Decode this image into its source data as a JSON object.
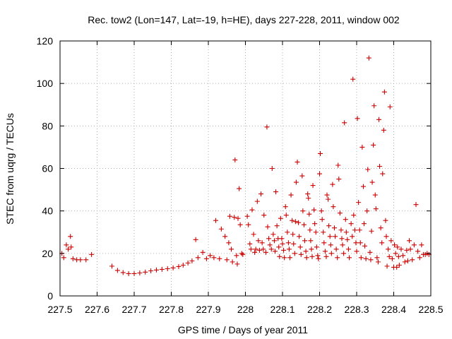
{
  "chart_data": {
    "type": "scatter",
    "title": "Rec. tow2 (Lon=147, Lat=-19, h=HE), days 227-228, 2011, window 002",
    "xlabel": "GPS time / Days of year 2011",
    "ylabel": "STEC from uqrg / TECUs",
    "xlim": [
      227.5,
      228.5
    ],
    "ylim": [
      0,
      120
    ],
    "grid": true,
    "marker": "+",
    "marker_color": "#cc0000",
    "x_ticks": [
      227.5,
      227.6,
      227.7,
      227.8,
      227.9,
      228.0,
      228.1,
      228.2,
      228.3,
      228.4,
      228.5
    ],
    "x_tick_labels": [
      "227.5",
      "227.6",
      "227.7",
      "227.8",
      "227.9",
      "228",
      "228.1",
      "228.2",
      "228.3",
      "228.4",
      "228.5"
    ],
    "y_ticks": [
      0,
      20,
      40,
      60,
      80,
      100,
      120
    ],
    "y_tick_labels": [
      "0",
      "20",
      "40",
      "60",
      "80",
      "100",
      "120"
    ],
    "points": [
      [
        227.505,
        20
      ],
      [
        227.51,
        18
      ],
      [
        227.517,
        24
      ],
      [
        227.522,
        22
      ],
      [
        227.528,
        28
      ],
      [
        227.53,
        23
      ],
      [
        227.535,
        17.5
      ],
      [
        227.545,
        17
      ],
      [
        227.555,
        17
      ],
      [
        227.57,
        17
      ],
      [
        227.585,
        19.5
      ],
      [
        227.64,
        14
      ],
      [
        227.655,
        12
      ],
      [
        227.67,
        11
      ],
      [
        227.685,
        10.5
      ],
      [
        227.7,
        10.5
      ],
      [
        227.715,
        10.8
      ],
      [
        227.73,
        11.2
      ],
      [
        227.745,
        11.8
      ],
      [
        227.76,
        12.2
      ],
      [
        227.775,
        12.5
      ],
      [
        227.79,
        12.8
      ],
      [
        227.805,
        13.2
      ],
      [
        227.82,
        13.8
      ],
      [
        227.832,
        14.5
      ],
      [
        227.845,
        15.5
      ],
      [
        227.856,
        16.5
      ],
      [
        227.866,
        26.5
      ],
      [
        227.872,
        18
      ],
      [
        227.885,
        20.5
      ],
      [
        227.895,
        17.5
      ],
      [
        227.905,
        19
      ],
      [
        227.915,
        18
      ],
      [
        227.92,
        35.5
      ],
      [
        227.93,
        17.5
      ],
      [
        227.935,
        31.5
      ],
      [
        227.945,
        28
      ],
      [
        227.95,
        17
      ],
      [
        227.955,
        25
      ],
      [
        227.958,
        37.5
      ],
      [
        227.962,
        22
      ],
      [
        227.965,
        16
      ],
      [
        227.97,
        37
      ],
      [
        227.972,
        64
      ],
      [
        227.976,
        19
      ],
      [
        227.98,
        36.5
      ],
      [
        227.983,
        50.5
      ],
      [
        227.986,
        33.5
      ],
      [
        227.99,
        20
      ],
      [
        227.993,
        19.5
      ],
      [
        227.978,
        15
      ],
      [
        228.005,
        37.5
      ],
      [
        228.008,
        33.5
      ],
      [
        228.012,
        24.5
      ],
      [
        228.015,
        22
      ],
      [
        228.018,
        40.5
      ],
      [
        228.022,
        29
      ],
      [
        228.025,
        20.5
      ],
      [
        228.028,
        22
      ],
      [
        228.032,
        44.5
      ],
      [
        228.035,
        26
      ],
      [
        228.038,
        21.5
      ],
      [
        228.042,
        48
      ],
      [
        228.045,
        25
      ],
      [
        228.048,
        22
      ],
      [
        228.05,
        38
      ],
      [
        228.055,
        20.5
      ],
      [
        228.058,
        79.5
      ],
      [
        228.06,
        32.5
      ],
      [
        228.063,
        27
      ],
      [
        228.066,
        24
      ],
      [
        228.07,
        22
      ],
      [
        228.072,
        60
      ],
      [
        228.075,
        29
      ],
      [
        228.078,
        26
      ],
      [
        228.08,
        21
      ],
      [
        228.082,
        49
      ],
      [
        228.085,
        33
      ],
      [
        228.088,
        27
      ],
      [
        228.09,
        23
      ],
      [
        228.092,
        18.5
      ],
      [
        228.095,
        36.5
      ],
      [
        228.098,
        27
      ],
      [
        228.1,
        24.5
      ],
      [
        228.103,
        21.5
      ],
      [
        228.105,
        18
      ],
      [
        228.108,
        42
      ],
      [
        228.11,
        38
      ],
      [
        228.113,
        30
      ],
      [
        228.116,
        25
      ],
      [
        228.118,
        22
      ],
      [
        228.12,
        18
      ],
      [
        228.123,
        47.5
      ],
      [
        228.126,
        35.5
      ],
      [
        228.128,
        29
      ],
      [
        228.13,
        24.5
      ],
      [
        228.133,
        20
      ],
      [
        228.135,
        35
      ],
      [
        228.137,
        53.5
      ],
      [
        228.14,
        63
      ],
      [
        228.143,
        34.5
      ],
      [
        228.145,
        28
      ],
      [
        228.148,
        23
      ],
      [
        228.15,
        19.5
      ],
      [
        228.153,
        56.5
      ],
      [
        228.155,
        40
      ],
      [
        228.158,
        33.5
      ],
      [
        228.16,
        26
      ],
      [
        228.163,
        21
      ],
      [
        228.165,
        18
      ],
      [
        228.168,
        48
      ],
      [
        228.17,
        46
      ],
      [
        228.172,
        38.5
      ],
      [
        228.174,
        31
      ],
      [
        228.176,
        26
      ],
      [
        228.178,
        22
      ],
      [
        228.18,
        18.5
      ],
      [
        228.182,
        52
      ],
      [
        228.185,
        40.5
      ],
      [
        228.187,
        34
      ],
      [
        228.19,
        30
      ],
      [
        228.192,
        23
      ],
      [
        228.195,
        19
      ],
      [
        228.197,
        17.5
      ],
      [
        228.2,
        57.5
      ],
      [
        228.202,
        67
      ],
      [
        228.205,
        40
      ],
      [
        228.207,
        36
      ],
      [
        228.21,
        30
      ],
      [
        228.212,
        25
      ],
      [
        228.215,
        21
      ],
      [
        228.218,
        18.5
      ],
      [
        228.22,
        47.5
      ],
      [
        228.223,
        45.5
      ],
      [
        228.225,
        33
      ],
      [
        228.228,
        28
      ],
      [
        228.23,
        24
      ],
      [
        228.232,
        20
      ],
      [
        228.235,
        52.5
      ],
      [
        228.237,
        42
      ],
      [
        228.24,
        32
      ],
      [
        228.242,
        28
      ],
      [
        228.245,
        22
      ],
      [
        228.248,
        18
      ],
      [
        228.25,
        61.5
      ],
      [
        228.252,
        55
      ],
      [
        228.255,
        39
      ],
      [
        228.258,
        31
      ],
      [
        228.26,
        27
      ],
      [
        228.262,
        24
      ],
      [
        228.265,
        20
      ],
      [
        228.267,
        81.5
      ],
      [
        228.27,
        36
      ],
      [
        228.272,
        30
      ],
      [
        228.275,
        26.5
      ],
      [
        228.278,
        22
      ],
      [
        228.28,
        18
      ],
      [
        228.285,
        34
      ],
      [
        228.288,
        28
      ],
      [
        228.29,
        102
      ],
      [
        228.292,
        38
      ],
      [
        228.295,
        31
      ],
      [
        228.298,
        25
      ],
      [
        228.3,
        21
      ],
      [
        228.302,
        83.5
      ],
      [
        228.305,
        44
      ],
      [
        228.308,
        31
      ],
      [
        228.31,
        25
      ],
      [
        228.312,
        18
      ],
      [
        228.315,
        70
      ],
      [
        228.318,
        51.5
      ],
      [
        228.32,
        34
      ],
      [
        228.322,
        23.5
      ],
      [
        228.325,
        17.5
      ],
      [
        228.328,
        40
      ],
      [
        228.33,
        59.5
      ],
      [
        228.333,
        112
      ],
      [
        228.336,
        20.5
      ],
      [
        228.338,
        17
      ],
      [
        228.34,
        30.5
      ],
      [
        228.342,
        53.5
      ],
      [
        228.345,
        71
      ],
      [
        228.347,
        89.5
      ],
      [
        228.35,
        47.5
      ],
      [
        228.352,
        41
      ],
      [
        228.355,
        18
      ],
      [
        228.358,
        16
      ],
      [
        228.36,
        83
      ],
      [
        228.362,
        61
      ],
      [
        228.365,
        32
      ],
      [
        228.368,
        25
      ],
      [
        228.37,
        57.5
      ],
      [
        228.373,
        78
      ],
      [
        228.375,
        96
      ],
      [
        228.378,
        35.5
      ],
      [
        228.38,
        28
      ],
      [
        228.382,
        14
      ],
      [
        228.385,
        22
      ],
      [
        228.388,
        18.5
      ],
      [
        228.39,
        89
      ],
      [
        228.393,
        26
      ],
      [
        228.396,
        17.5
      ],
      [
        228.4,
        13.5
      ],
      [
        228.402,
        24
      ],
      [
        228.405,
        20
      ],
      [
        228.408,
        13.5
      ],
      [
        228.41,
        23
      ],
      [
        228.413,
        18.5
      ],
      [
        228.415,
        14.5
      ],
      [
        228.42,
        22
      ],
      [
        228.425,
        19
      ],
      [
        228.43,
        16
      ],
      [
        228.435,
        21.5
      ],
      [
        228.438,
        16.5
      ],
      [
        228.442,
        26
      ],
      [
        228.445,
        22
      ],
      [
        228.45,
        17
      ],
      [
        228.455,
        24
      ],
      [
        228.46,
        43
      ],
      [
        228.465,
        21
      ],
      [
        228.47,
        18
      ],
      [
        228.475,
        24
      ],
      [
        228.48,
        19.5
      ],
      [
        228.485,
        19.5
      ],
      [
        228.49,
        20
      ],
      [
        228.495,
        19.5
      ]
    ]
  }
}
